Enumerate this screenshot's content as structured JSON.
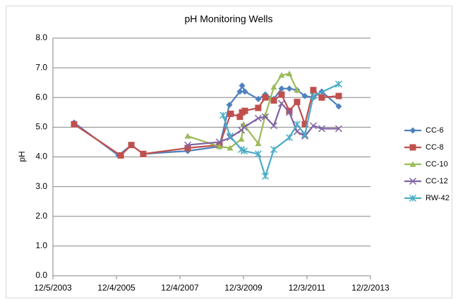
{
  "chart_data": {
    "type": "line",
    "title": "pH Monitoring Wells",
    "y_label": "pH",
    "xlim": [
      37960,
      41610
    ],
    "xticks": [
      {
        "value": 37960,
        "label": "12/5/2003"
      },
      {
        "value": 38690,
        "label": "12/4/2005"
      },
      {
        "value": 39420,
        "label": "12/4/2007"
      },
      {
        "value": 40150,
        "label": "12/3/2009"
      },
      {
        "value": 40880,
        "label": "12/3/2011"
      },
      {
        "value": 41610,
        "label": "12/2/2013"
      }
    ],
    "ylim": [
      0,
      8
    ],
    "yticks": [
      {
        "value": 0,
        "label": "0.0"
      },
      {
        "value": 1,
        "label": "1.0"
      },
      {
        "value": 2,
        "label": "2.0"
      },
      {
        "value": 3,
        "label": "3.0"
      },
      {
        "value": 4,
        "label": "4.0"
      },
      {
        "value": 5,
        "label": "5.0"
      },
      {
        "value": 6,
        "label": "6.0"
      },
      {
        "value": 7,
        "label": "7.0"
      },
      {
        "value": 8,
        "label": "8.0"
      }
    ],
    "grid": true,
    "legend": "right",
    "series": [
      {
        "name": "CC-6",
        "color": "#4f81bd",
        "marker": "diamond",
        "x": [
          38203,
          38714,
          38861,
          38998,
          39509,
          39874,
          39988,
          40109,
          40134,
          40166,
          40320,
          40401,
          40499,
          40588,
          40677,
          40766,
          40856,
          40953,
          41050,
          41245
        ],
        "values": [
          5.15,
          4.05,
          4.4,
          4.1,
          4.2,
          4.35,
          5.75,
          6.2,
          6.4,
          6.2,
          5.95,
          6.1,
          5.95,
          6.3,
          6.3,
          6.25,
          6.05,
          6.0,
          6.2,
          5.7
        ]
      },
      {
        "name": "CC-8",
        "color": "#c0504d",
        "marker": "square",
        "x": [
          38203,
          38739,
          38861,
          38998,
          39509,
          39874,
          40004,
          40109,
          40134,
          40166,
          40320,
          40401,
          40499,
          40588,
          40677,
          40766,
          40856,
          40953,
          41050,
          41245
        ],
        "values": [
          5.1,
          4.05,
          4.4,
          4.1,
          4.3,
          4.4,
          5.45,
          5.35,
          5.5,
          5.55,
          5.65,
          6.0,
          5.9,
          6.1,
          5.55,
          5.85,
          5.1,
          6.25,
          6.0,
          6.05
        ]
      },
      {
        "name": "CC-10",
        "color": "#9bbb59",
        "marker": "triangle",
        "x": [
          39509,
          39874,
          39996,
          40126,
          40150,
          40320,
          40401,
          40499,
          40588,
          40677,
          40766
        ],
        "values": [
          4.7,
          4.35,
          4.3,
          4.6,
          5.1,
          4.45,
          5.4,
          6.35,
          6.75,
          6.8,
          6.25
        ]
      },
      {
        "name": "CC-12",
        "color": "#8064a2",
        "marker": "x",
        "x": [
          39509,
          39874,
          39996,
          40126,
          40158,
          40320,
          40401,
          40499,
          40588,
          40677,
          40766,
          40856,
          40953,
          41050,
          41245
        ],
        "values": [
          4.4,
          4.5,
          4.65,
          4.9,
          5.0,
          5.3,
          5.35,
          5.05,
          5.8,
          5.5,
          4.85,
          4.7,
          5.05,
          4.95,
          4.95
        ]
      },
      {
        "name": "RW-42",
        "color": "#4bacc6",
        "marker": "star",
        "x": [
          39915,
          39996,
          40126,
          40158,
          40320,
          40401,
          40499,
          40677,
          40766,
          40856,
          40953,
          41245
        ],
        "values": [
          5.4,
          4.7,
          4.25,
          4.2,
          4.1,
          3.35,
          4.25,
          4.65,
          5.1,
          4.75,
          6.05,
          6.45
        ]
      }
    ]
  }
}
